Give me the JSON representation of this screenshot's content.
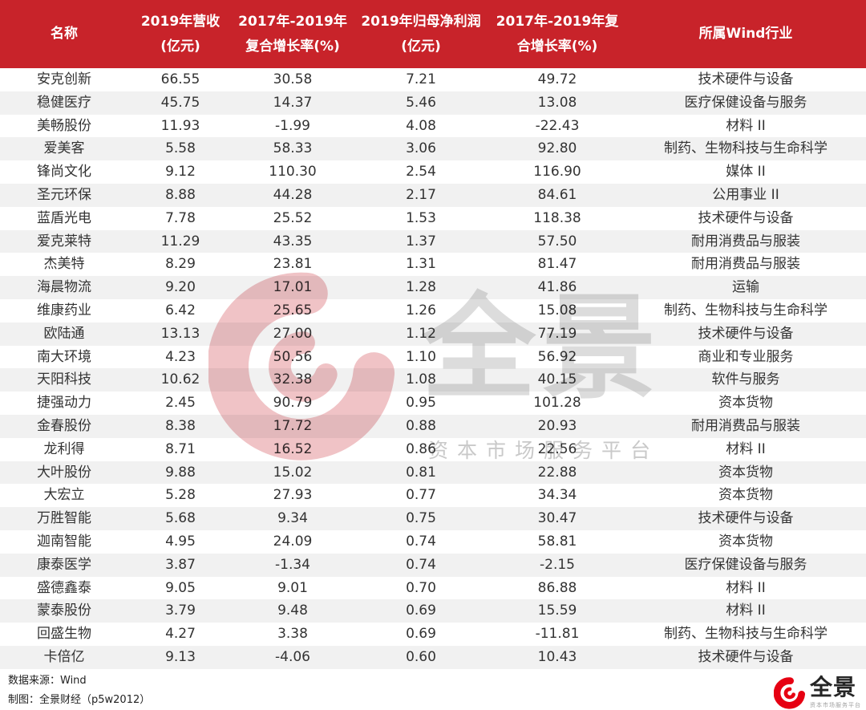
{
  "chart_data": {
    "type": "table",
    "title": "",
    "columns": [
      {
        "line1": "名称",
        "line2": ""
      },
      {
        "line1": "2019年营收",
        "line2": "(亿元)"
      },
      {
        "line1": "2017年-2019年",
        "line2": "复合增长率(%)"
      },
      {
        "line1": "2019年归母净利润",
        "line2": "(亿元)"
      },
      {
        "line1": "2017年-2019年复",
        "line2": "合增长率(%)"
      },
      {
        "line1": "所属Wind行业",
        "line2": ""
      }
    ],
    "rows": [
      [
        "安克创新",
        "66.55",
        "30.58",
        "7.21",
        "49.72",
        "技术硬件与设备"
      ],
      [
        "稳健医疗",
        "45.75",
        "14.37",
        "5.46",
        "13.08",
        "医疗保健设备与服务"
      ],
      [
        "美畅股份",
        "11.93",
        "-1.99",
        "4.08",
        "-22.43",
        "材料 II"
      ],
      [
        "爱美客",
        "5.58",
        "58.33",
        "3.06",
        "92.80",
        "制药、生物科技与生命科学"
      ],
      [
        "锋尚文化",
        "9.12",
        "110.30",
        "2.54",
        "116.90",
        "媒体 II"
      ],
      [
        "圣元环保",
        "8.88",
        "44.28",
        "2.17",
        "84.61",
        "公用事业 II"
      ],
      [
        "蓝盾光电",
        "7.78",
        "25.52",
        "1.53",
        "118.38",
        "技术硬件与设备"
      ],
      [
        "爱克莱特",
        "11.29",
        "43.35",
        "1.37",
        "57.50",
        "耐用消费品与服装"
      ],
      [
        "杰美特",
        "8.29",
        "23.81",
        "1.31",
        "81.47",
        "耐用消费品与服装"
      ],
      [
        "海晨物流",
        "9.20",
        "17.01",
        "1.28",
        "41.86",
        "运输"
      ],
      [
        "维康药业",
        "6.42",
        "25.65",
        "1.26",
        "15.08",
        "制药、生物科技与生命科学"
      ],
      [
        "欧陆通",
        "13.13",
        "27.00",
        "1.12",
        "77.19",
        "技术硬件与设备"
      ],
      [
        "南大环境",
        "4.23",
        "50.56",
        "1.10",
        "56.92",
        "商业和专业服务"
      ],
      [
        "天阳科技",
        "10.62",
        "32.38",
        "1.08",
        "40.15",
        "软件与服务"
      ],
      [
        "捷强动力",
        "2.45",
        "90.79",
        "0.95",
        "101.28",
        "资本货物"
      ],
      [
        "金春股份",
        "8.38",
        "17.72",
        "0.88",
        "20.93",
        "耐用消费品与服装"
      ],
      [
        "龙利得",
        "8.71",
        "16.52",
        "0.86",
        "22.56",
        "材料 II"
      ],
      [
        "大叶股份",
        "9.88",
        "15.02",
        "0.81",
        "22.88",
        "资本货物"
      ],
      [
        "大宏立",
        "5.28",
        "27.93",
        "0.77",
        "34.34",
        "资本货物"
      ],
      [
        "万胜智能",
        "5.68",
        "9.34",
        "0.75",
        "30.47",
        "技术硬件与设备"
      ],
      [
        "迦南智能",
        "4.95",
        "24.09",
        "0.74",
        "58.81",
        "资本货物"
      ],
      [
        "康泰医学",
        "3.87",
        "-1.34",
        "0.74",
        "-2.15",
        "医疗保健设备与服务"
      ],
      [
        "盛德鑫泰",
        "9.05",
        "9.01",
        "0.70",
        "86.88",
        "材料 II"
      ],
      [
        "蒙泰股份",
        "3.79",
        "9.48",
        "0.69",
        "15.59",
        "材料 II"
      ],
      [
        "回盛生物",
        "4.27",
        "3.38",
        "0.69",
        "-11.81",
        "制药、生物科技与生命科学"
      ],
      [
        "卡倍亿",
        "9.13",
        "-4.06",
        "0.60",
        "10.43",
        "技术硬件与设备"
      ]
    ]
  },
  "watermark": {
    "brand": "全景",
    "tagline": "资本市场服务平台"
  },
  "footer": {
    "source": "数据来源：Wind",
    "credit": "制图：全景财经（p5w2012）",
    "logo_text": "全景",
    "logo_tagline": "资本市场服务平台"
  },
  "colors": {
    "header_bg": "#c8232a",
    "row_alt": "#f1f1f1",
    "brand_red": "#e60012",
    "watermark_pink": "#f0c3c6",
    "text": "#333333"
  }
}
